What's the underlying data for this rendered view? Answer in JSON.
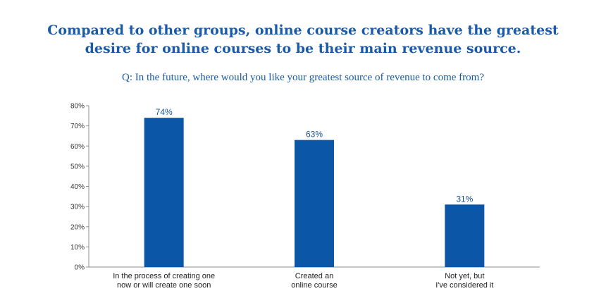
{
  "header": {
    "title_line1": "Compared to other groups, online course creators have the greatest",
    "title_line2": "desire for online courses to be their main revenue source.",
    "subtitle": "Q: In the future, where would you like your greatest source of revenue to come from?"
  },
  "chart_data": {
    "type": "bar",
    "categories": [
      [
        "In the process of creating one",
        "now or will create one soon"
      ],
      [
        "Created an",
        "online course"
      ],
      [
        "Not yet, but",
        "I've considered it"
      ]
    ],
    "values": [
      74,
      63,
      31
    ],
    "value_labels": [
      "74%",
      "63%",
      "31%"
    ],
    "y_ticks": [
      "0%",
      "10%",
      "20%",
      "30%",
      "40%",
      "50%",
      "60%",
      "70%",
      "80%"
    ],
    "ylim": [
      0,
      80
    ],
    "grid": false,
    "bar_color": "#0b56a6"
  }
}
